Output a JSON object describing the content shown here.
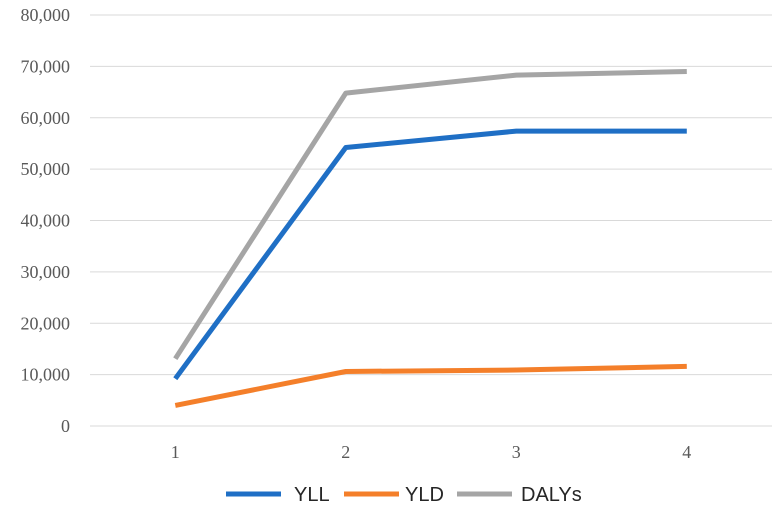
{
  "chart_data": {
    "type": "line",
    "title": "",
    "xlabel": "",
    "ylabel": "",
    "categories": [
      "1",
      "2",
      "3",
      "4"
    ],
    "ylim": [
      0,
      80000
    ],
    "yticks": [
      0,
      10000,
      20000,
      30000,
      40000,
      50000,
      60000,
      70000,
      80000
    ],
    "ytick_labels": [
      "0",
      "10,000",
      "20,000",
      "30,000",
      "40,000",
      "50,000",
      "60,000",
      "70,000",
      "80,000"
    ],
    "grid": true,
    "legend_position": "bottom",
    "series": [
      {
        "name": "YLL",
        "color": "#1f6fc5",
        "values": [
          9200,
          54200,
          57400,
          57400
        ]
      },
      {
        "name": "YLD",
        "color": "#f47f2a",
        "values": [
          4000,
          10600,
          10900,
          11600
        ]
      },
      {
        "name": "DALYs",
        "color": "#a5a5a5",
        "values": [
          13100,
          64800,
          68300,
          69000
        ]
      }
    ]
  }
}
